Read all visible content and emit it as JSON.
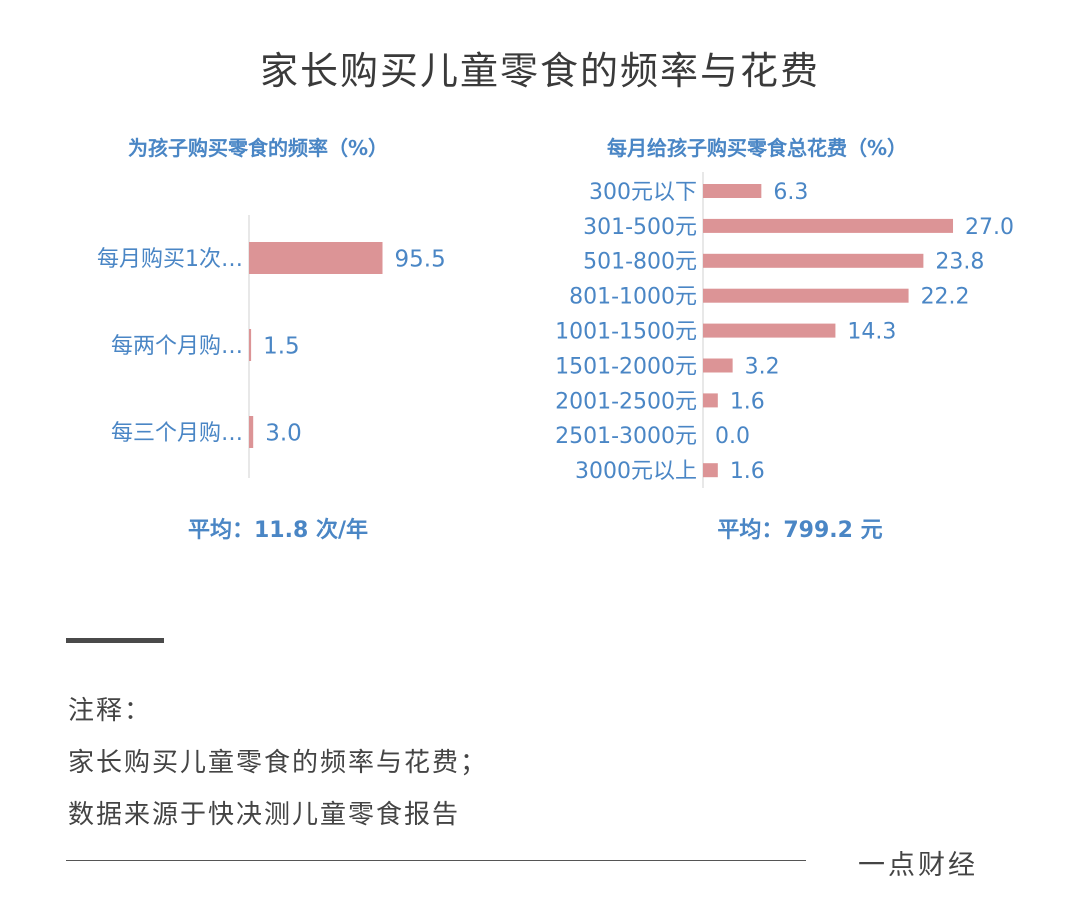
{
  "page_title": "家长购买儿童零食的频率与花费",
  "chart_data": [
    {
      "type": "bar",
      "orientation": "horizontal",
      "title": "为孩子购买零食的频率（%）",
      "categories": [
        "每月购买1次…",
        "每两个月购…",
        "每三个月购…"
      ],
      "values": [
        95.5,
        1.5,
        3.0
      ],
      "value_labels": [
        "95.5",
        "1.5",
        "3.0"
      ],
      "xlim": [
        0,
        100
      ],
      "grid": false,
      "summary": "平均：11.8 次/年",
      "bar_color": "#dc9496"
    },
    {
      "type": "bar",
      "orientation": "horizontal",
      "title": "每月给孩子购买零食总花费（%）",
      "categories": [
        "300元以下",
        "301-500元",
        "501-800元",
        "801-1000元",
        "1001-1500元",
        "1501-2000元",
        "2001-2500元",
        "2501-3000元",
        "3000元以上"
      ],
      "values": [
        6.3,
        27.0,
        23.8,
        22.2,
        14.3,
        3.2,
        1.6,
        0.0,
        1.6
      ],
      "value_labels": [
        "6.3",
        "27.0",
        "23.8",
        "22.2",
        "14.3",
        "3.2",
        "1.6",
        "0.0",
        "1.6"
      ],
      "xlim": [
        0,
        27.0
      ],
      "grid": false,
      "summary": "平均：799.2 元",
      "bar_color": "#dc9496"
    }
  ],
  "colors": {
    "accent_blue": "#4a86c5",
    "axis_label": "#4a86c5",
    "bar": "#dc9496",
    "axis_line": "#d0d0d0"
  },
  "notes": {
    "heading": "注释：",
    "line1": "家长购买儿童零食的频率与花费；",
    "line2": "数据来源于快决测儿童零食报告"
  },
  "brand": "一点财经"
}
